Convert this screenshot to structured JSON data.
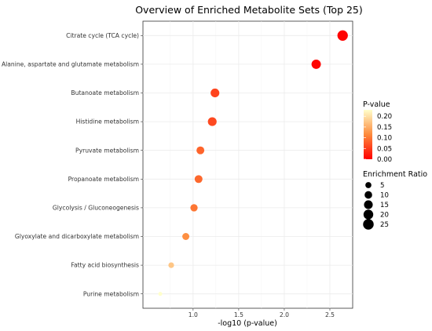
{
  "chart_data": {
    "type": "scatter",
    "title": "Overview of Enriched Metabolite Sets (Top 25)",
    "xlabel": "-log10 (p-value)",
    "ylabel": "",
    "xlim": [
      0.45,
      2.75
    ],
    "xticks": [
      "1.0",
      "1.5",
      "2.0",
      "2.5"
    ],
    "grid": true,
    "series": [
      {
        "points": [
          {
            "label": "Citrate cycle (TCA cycle)",
            "x": 2.64,
            "p": 0.0023,
            "ratio": 24
          },
          {
            "label": "Alanine, aspartate and glutamate metabolism",
            "x": 2.35,
            "p": 0.0045,
            "ratio": 18
          },
          {
            "label": "Butanoate metabolism",
            "x": 1.24,
            "p": 0.057,
            "ratio": 15
          },
          {
            "label": "Histidine metabolism",
            "x": 1.21,
            "p": 0.061,
            "ratio": 15
          },
          {
            "label": "Pyruvate metabolism",
            "x": 1.08,
            "p": 0.083,
            "ratio": 11
          },
          {
            "label": "Propanoate metabolism",
            "x": 1.06,
            "p": 0.087,
            "ratio": 11
          },
          {
            "label": "Glycolysis / Gluconeogenesis",
            "x": 1.01,
            "p": 0.098,
            "ratio": 9
          },
          {
            "label": "Glyoxylate and dicarboxylate metabolism",
            "x": 0.92,
            "p": 0.12,
            "ratio": 8
          },
          {
            "label": "Fatty acid biosynthesis",
            "x": 0.76,
            "p": 0.174,
            "ratio": 4
          },
          {
            "label": "Purine metabolism",
            "x": 0.64,
            "p": 0.23,
            "ratio": 1
          }
        ]
      }
    ],
    "color_legend": {
      "title": "P-value",
      "ticks": [
        "0.20",
        "0.15",
        "0.10",
        "0.05",
        "0.00"
      ],
      "range": [
        0,
        0.23
      ],
      "colors": [
        "#ff0000",
        "#ffffcc"
      ]
    },
    "size_legend": {
      "title": "Enrichment Ratio",
      "entries": [
        "5",
        "10",
        "15",
        "20",
        "25"
      ]
    },
    "legend_placement": "right"
  }
}
